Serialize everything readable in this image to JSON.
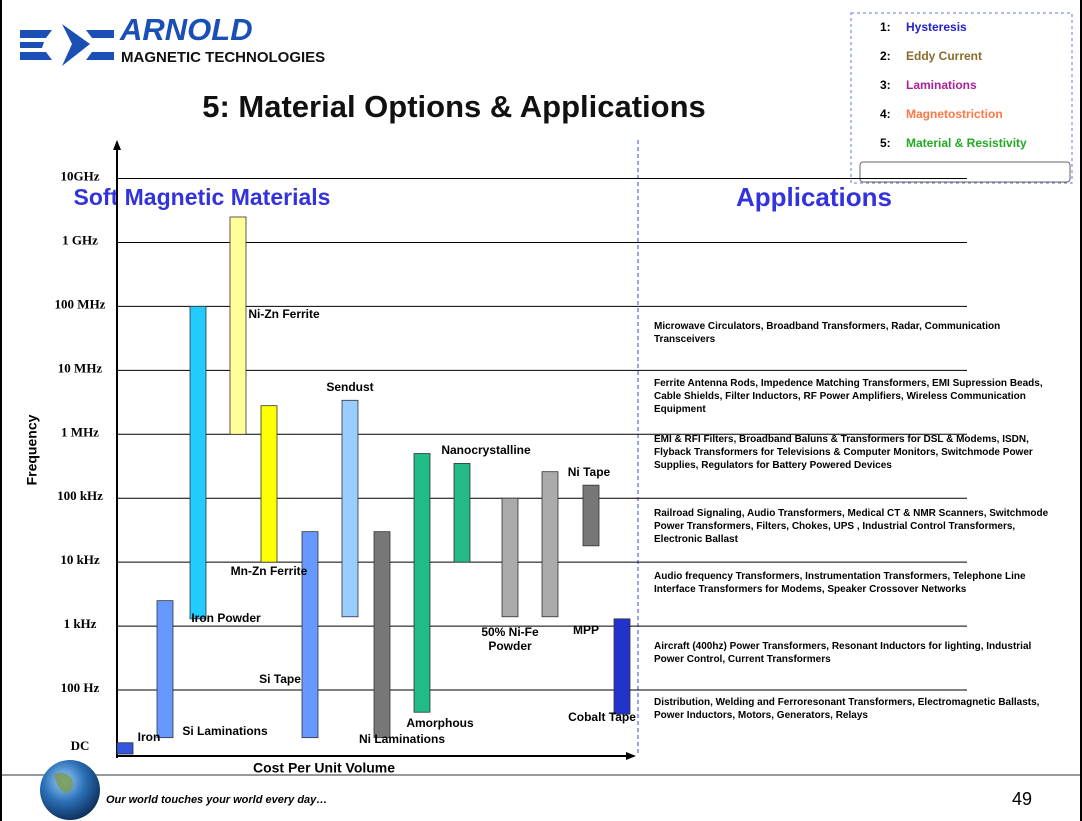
{
  "header": {
    "brand": "ARNOLD",
    "brand_sub": "MAGNETIC TECHNOLOGIES",
    "title": "5: Material Options & Applications"
  },
  "nav": [
    {
      "number": "1:",
      "label": "Hysteresis",
      "color": "#2222cc"
    },
    {
      "number": "2:",
      "label": "Eddy Current",
      "color": "#8b6a2b"
    },
    {
      "number": "3:",
      "label": "Laminations",
      "color": "#aa2299"
    },
    {
      "number": "4:",
      "label": "Magnetostriction",
      "color": "#ff7744"
    },
    {
      "number": "5:",
      "label": "Material & Resistivity",
      "color": "#22aa22"
    }
  ],
  "chart_data": {
    "type": "floating-bar",
    "title": "Soft Magnetic Materials",
    "x_label": "Cost Per Unit Volume",
    "y_label": "Frequency",
    "log_y": true,
    "ylim": [
      10,
      40000000000
    ],
    "origin_label": "DC",
    "yticks": [
      {
        "value": 100,
        "label": "100 Hz"
      },
      {
        "value": 1000,
        "label": "1 kHz"
      },
      {
        "value": 10000,
        "label": "10 kHz"
      },
      {
        "value": 100000,
        "label": "100 kHz"
      },
      {
        "value": 1000000,
        "label": "1 MHz"
      },
      {
        "value": 10000000,
        "label": "10 MHz"
      },
      {
        "value": 100000000,
        "label": "100 MHz"
      },
      {
        "value": 1000000000,
        "label": "1 GHz"
      },
      {
        "value": 10000000000,
        "label": "10GHz"
      }
    ],
    "grid": true,
    "bars": [
      {
        "name": "Iron",
        "color": "#3355dd",
        "low": 10,
        "high": 15
      },
      {
        "name": "Si Laminations",
        "color": "#6699ff",
        "low": 18,
        "high": 2500
      },
      {
        "name": "Iron Powder",
        "color": "#22ccff",
        "low": 1300,
        "high": 100000000
      },
      {
        "name": "Ni-Zn Ferrite",
        "color": "#ffff99",
        "low": 1000000,
        "high": 2500000000
      },
      {
        "name": "Mn-Zn Ferrite",
        "color": "#ffff00",
        "low": 10000,
        "high": 2800000
      },
      {
        "name": "Si Tape",
        "color": "#6699ff",
        "low": 18,
        "high": 30000
      },
      {
        "name": "Sendust",
        "color": "#99ccff",
        "low": 1400,
        "high": 3400000
      },
      {
        "name": "Ni Laminations",
        "color": "#777777",
        "low": 18,
        "high": 30000
      },
      {
        "name": "Amorphous",
        "color": "#22bb88",
        "low": 45,
        "high": 500000
      },
      {
        "name": "Nanocrystalline",
        "color": "#22bb88",
        "low": 10000,
        "high": 350000
      },
      {
        "name": "50% Ni-Fe Powder",
        "color": "#aaaaaa",
        "low": 1400,
        "high": 100000
      },
      {
        "name": "MPP",
        "color": "#aaaaaa",
        "low": 1400,
        "high": 260000
      },
      {
        "name": "Ni Tape",
        "color": "#777777",
        "low": 18000,
        "high": 160000
      },
      {
        "name": "Cobalt Tape",
        "color": "#2233cc",
        "low": 42,
        "high": 1300
      }
    ]
  },
  "applications_heading": "Applications",
  "applications": [
    "Microwave Circulators, Broadband Transformers, Radar, Communication Transceivers",
    "Ferrite Antenna Rods, Impedence Matching Transformers, EMI Supression Beads, Cable Shields, Filter Inductors, RF Power Amplifiers, Wireless Communication Equipment",
    "EMI & RFI Filters, Broadband Baluns & Transformers for DSL & Modems, ISDN, Flyback Transformers for Televisions & Computer Monitors, Switchmode Power Supplies, Regulators for Battery Powered Devices",
    "Railroad Signaling, Audio Transformers, Medical CT & NMR Scanners, Switchmode Power Transformers, Filters, Chokes, UPS , Industrial Control Transformers, Electronic Ballast",
    "Audio frequency Transformers, Instrumentation Transformers, Telephone Line Interface Transformers for Modems, Speaker Crossover Networks",
    "Aircraft (400hz) Power Transformers, Resonant Inductors for lighting, Industrial Power Control, Current Transformers",
    "Distribution, Welding and Ferroresonant Transformers, Electromagnetic Ballasts, Power Inductors, Motors, Generators, Relays"
  ],
  "footer": {
    "tagline": "Our world touches your world every day…",
    "page": "49"
  }
}
